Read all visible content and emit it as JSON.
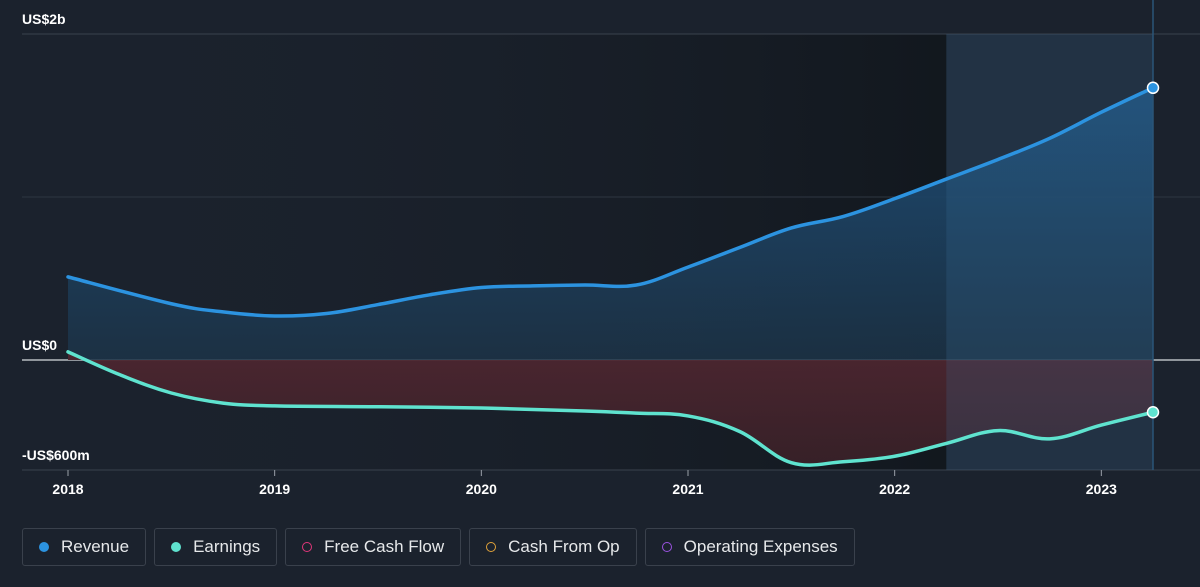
{
  "chart_data": {
    "type": "line",
    "title": "",
    "y_axis": {
      "labels": [
        {
          "value": 2000,
          "text": "US$2b"
        },
        {
          "value": 0,
          "text": "US$0"
        },
        {
          "value": -600,
          "text": "-US$600m"
        }
      ],
      "unit": "US$ millions",
      "ylim": [
        -600,
        2000
      ]
    },
    "x_axis": {
      "ticks": [
        "2018",
        "2019",
        "2020",
        "2021",
        "2022",
        "2023"
      ],
      "xlim": [
        2018.0,
        2023.25
      ]
    },
    "highlight_range": [
      2022.25,
      2023.25
    ],
    "grid": "horizontal",
    "series": [
      {
        "name": "Revenue",
        "color": "#2c93e0",
        "x": [
          2018.0,
          2018.5,
          2018.75,
          2019.0,
          2019.25,
          2019.5,
          2019.75,
          2020.0,
          2020.25,
          2020.5,
          2020.75,
          2021.0,
          2021.25,
          2021.5,
          2021.75,
          2022.0,
          2022.25,
          2022.5,
          2022.75,
          2023.0,
          2023.25
        ],
        "values": [
          510,
          345,
          295,
          270,
          285,
          340,
          400,
          445,
          455,
          460,
          460,
          570,
          690,
          810,
          880,
          990,
          1110,
          1230,
          1360,
          1520,
          1670
        ]
      },
      {
        "name": "Earnings",
        "color": "#5fe3cf",
        "x": [
          2018.0,
          2018.25,
          2018.5,
          2018.75,
          2019.0,
          2019.5,
          2020.0,
          2020.5,
          2020.75,
          2021.0,
          2021.25,
          2021.5,
          2021.75,
          2022.0,
          2022.25,
          2022.5,
          2022.75,
          2023.0,
          2023.25
        ],
        "values": [
          50,
          -80,
          -180,
          -235,
          -250,
          -255,
          -262,
          -278,
          -290,
          -305,
          -390,
          -560,
          -555,
          -525,
          -455,
          -385,
          -430,
          -355,
          -285
        ]
      }
    ],
    "legend": {
      "placement": "bottom-left",
      "items": [
        {
          "name": "Revenue",
          "color": "#2c93e0",
          "style": "filled"
        },
        {
          "name": "Earnings",
          "color": "#5fe3cf",
          "style": "filled"
        },
        {
          "name": "Free Cash Flow",
          "color": "#e0367a",
          "style": "outline"
        },
        {
          "name": "Cash From Op",
          "color": "#e0a23a",
          "style": "outline"
        },
        {
          "name": "Operating Expenses",
          "color": "#9a52e0",
          "style": "outline"
        }
      ]
    }
  }
}
